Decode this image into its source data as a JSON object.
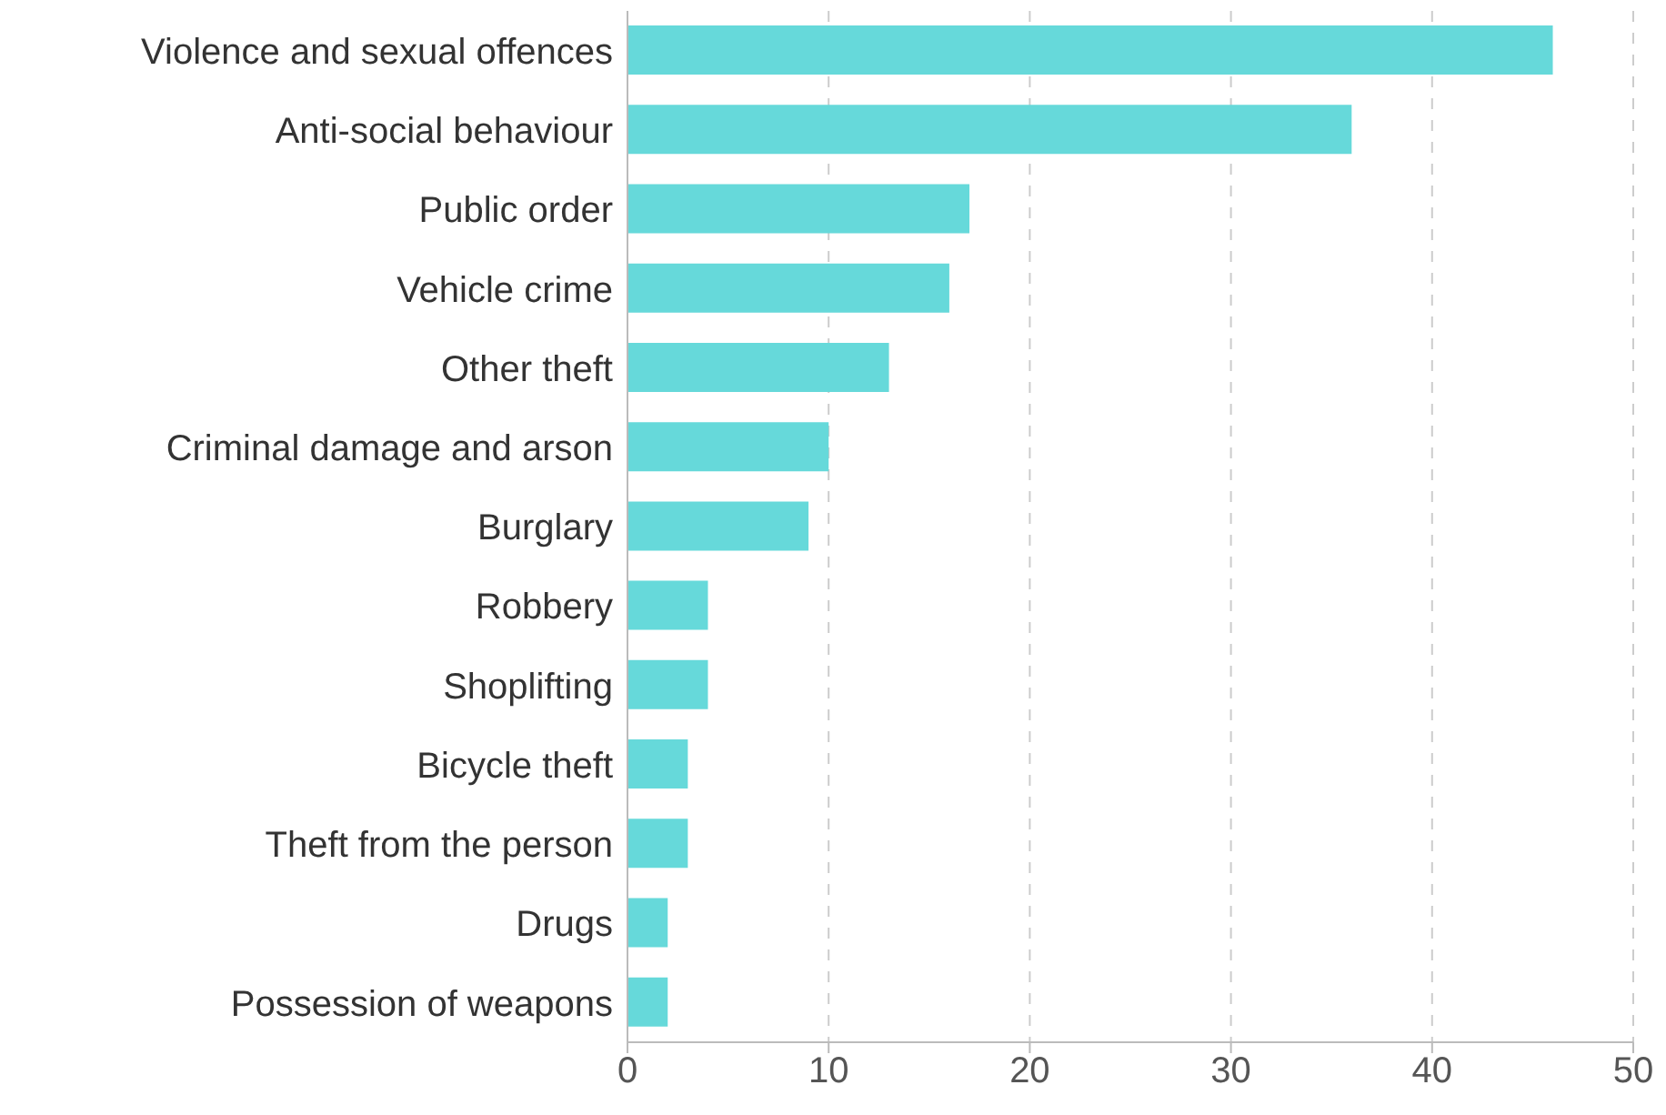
{
  "chart_data": {
    "type": "bar",
    "orientation": "horizontal",
    "categories": [
      "Violence and sexual offences",
      "Anti-social behaviour",
      "Public order",
      "Vehicle crime",
      "Other theft",
      "Criminal damage and arson",
      "Burglary",
      "Robbery",
      "Shoplifting",
      "Bicycle theft",
      "Theft from the person",
      "Drugs",
      "Possession of weapons"
    ],
    "values": [
      46,
      36,
      17,
      16,
      13,
      10,
      9,
      4,
      4,
      3,
      3,
      2,
      2
    ],
    "color": "#66d9da",
    "xlim": [
      0,
      50
    ],
    "xticks": [
      0,
      10,
      20,
      30,
      40,
      50
    ],
    "grid": "x"
  }
}
